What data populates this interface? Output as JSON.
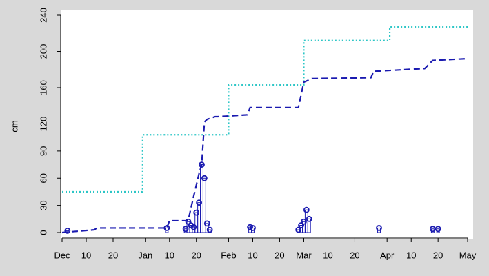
{
  "chart_data": {
    "type": "line",
    "ylabel": "cm",
    "xlim": [
      0,
      151
    ],
    "xticks": [
      {
        "value": 0,
        "label": "Dec"
      },
      {
        "value": 9,
        "label": "10"
      },
      {
        "value": 19,
        "label": "20"
      },
      {
        "value": 31,
        "label": "Jan"
      },
      {
        "value": 40,
        "label": "10"
      },
      {
        "value": 50,
        "label": "20"
      },
      {
        "value": 62,
        "label": "Feb"
      },
      {
        "value": 71,
        "label": "10"
      },
      {
        "value": 81,
        "label": "20"
      },
      {
        "value": 90,
        "label": "Mar"
      },
      {
        "value": 99,
        "label": "10"
      },
      {
        "value": 109,
        "label": "20"
      },
      {
        "value": 121,
        "label": "Apr"
      },
      {
        "value": 130,
        "label": "10"
      },
      {
        "value": 140,
        "label": "20"
      },
      {
        "value": 151,
        "label": "May"
      }
    ],
    "ylim": [
      0,
      240
    ],
    "yticks": [
      0,
      30,
      60,
      90,
      120,
      160,
      200,
      240
    ],
    "series": [
      {
        "style": "dotted",
        "color": "#2cc6c6",
        "x": [
          0,
          30,
          30,
          62,
          62,
          90,
          90,
          122,
          122,
          151
        ],
        "values": [
          45,
          45,
          108,
          108,
          163,
          163,
          212,
          212,
          227,
          227
        ]
      },
      {
        "style": "dashed",
        "color": "#1a1ab0",
        "x": [
          0,
          12,
          13,
          39,
          40,
          46,
          47,
          49,
          51,
          52,
          53,
          54,
          57,
          58,
          69,
          70,
          88,
          89,
          90,
          93,
          115,
          116,
          134,
          135,
          138,
          151
        ],
        "values": [
          0,
          3,
          5,
          5,
          13,
          13,
          14,
          40,
          65,
          75,
          122,
          125,
          128,
          128,
          130,
          138,
          138,
          152,
          166,
          170,
          171,
          178,
          181,
          181,
          190,
          192
        ]
      },
      {
        "style": "bars",
        "color": "#1a1ab0",
        "x": [
          2,
          39,
          46,
          47,
          48,
          49,
          50,
          51,
          52,
          53,
          54,
          55,
          70,
          71,
          88,
          89,
          90,
          91,
          92,
          118,
          138,
          140
        ],
        "values": [
          2,
          5,
          4,
          12,
          8,
          6,
          22,
          33,
          75,
          60,
          10,
          3,
          6,
          5,
          3,
          8,
          12,
          25,
          15,
          5,
          4,
          4
        ]
      }
    ]
  }
}
